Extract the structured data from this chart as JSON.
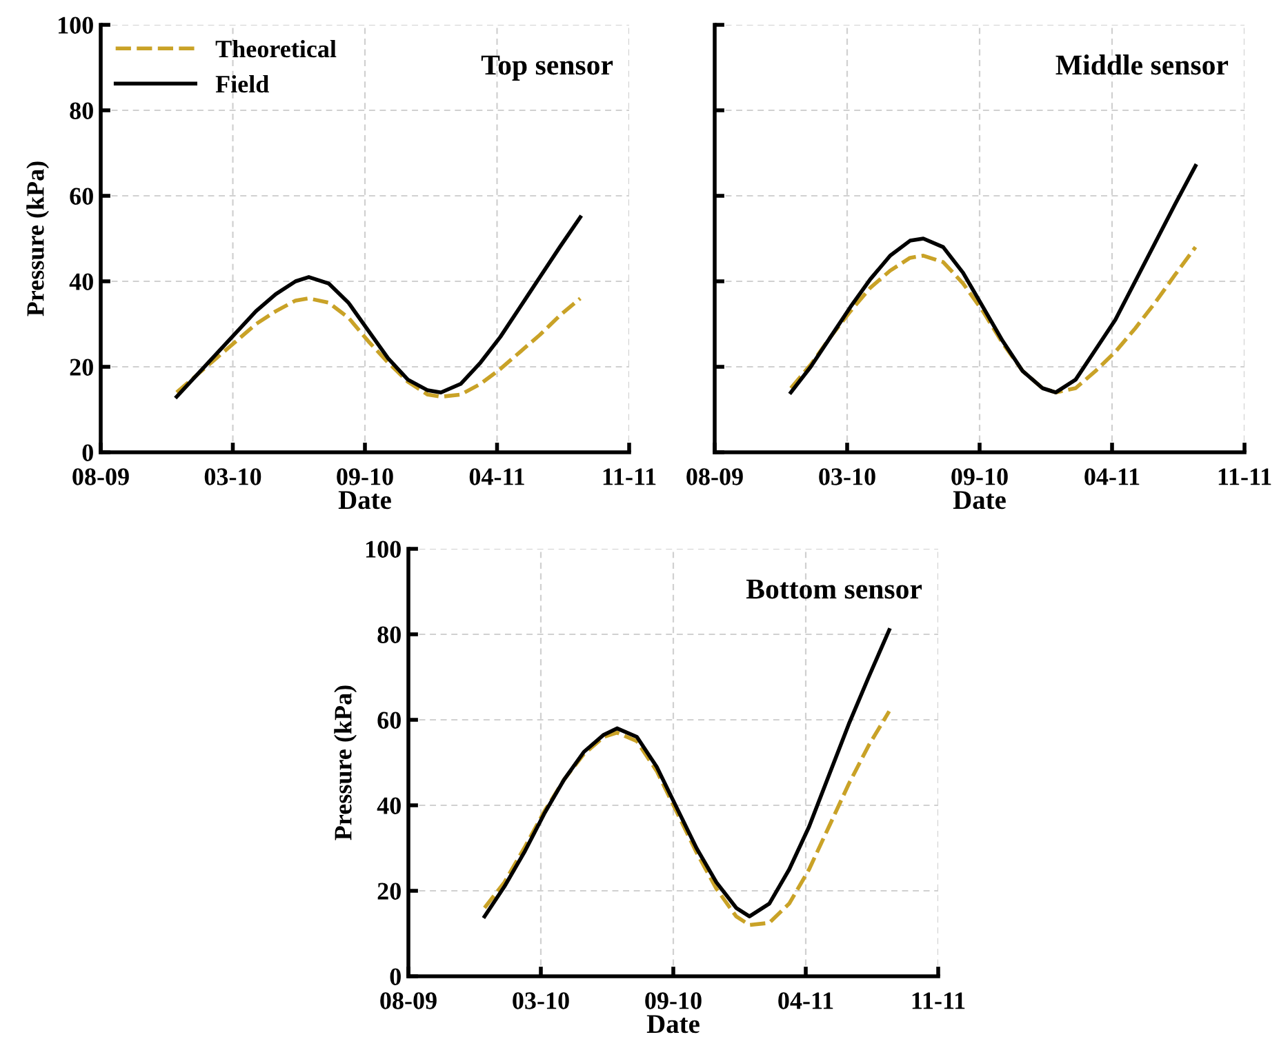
{
  "chart_data": [
    {
      "type": "line",
      "title": "Top sensor",
      "xlabel": "Date",
      "ylabel": "Pressure (kPa)",
      "x": [
        "2009-12-18",
        "2010-01-17",
        "2010-02-16",
        "2010-03-18",
        "2010-04-17",
        "2010-05-17",
        "2010-06-16",
        "2010-07-06",
        "2010-08-05",
        "2010-09-04",
        "2010-10-04",
        "2010-11-03",
        "2010-12-03",
        "2011-01-02",
        "2011-01-22",
        "2011-02-21",
        "2011-03-23",
        "2011-04-22",
        "2011-05-22",
        "2011-06-21",
        "2011-07-21",
        "2011-08-21"
      ],
      "series": [
        {
          "name": "Theoretical",
          "color": "#c9a227",
          "line_style": "dashed",
          "values": [
            14,
            18,
            22,
            26,
            30,
            33,
            35.5,
            36,
            35,
            31.5,
            26,
            21,
            16.5,
            13.5,
            13,
            13.5,
            16,
            19.5,
            23.5,
            27.5,
            32,
            36
          ]
        },
        {
          "name": "Field",
          "color": "#000000",
          "line_style": "solid",
          "values": [
            13,
            18,
            23,
            28,
            33,
            37,
            40,
            41,
            39.5,
            35,
            28.5,
            22,
            17,
            14.5,
            14,
            16,
            21,
            27,
            34,
            41,
            48,
            55
          ]
        }
      ],
      "xlim": [
        "2009-08-25",
        "2011-11-03"
      ],
      "xticks": [
        {
          "value": "2009-08-25",
          "label": "08-09"
        },
        {
          "value": "2010-03-13",
          "label": "03-10"
        },
        {
          "value": "2010-09-29",
          "label": "09-10"
        },
        {
          "value": "2011-04-17",
          "label": "04-11"
        },
        {
          "value": "2011-11-03",
          "label": "11-11"
        }
      ],
      "ylim": [
        0,
        100
      ],
      "yticks": [
        0,
        20,
        40,
        60,
        80,
        100
      ],
      "grid": true,
      "legend": "top left"
    },
    {
      "type": "line",
      "title": "Middle sensor",
      "xlabel": "Date",
      "x": [
        "2009-12-18",
        "2010-01-17",
        "2010-02-16",
        "2010-03-18",
        "2010-04-17",
        "2010-05-17",
        "2010-06-16",
        "2010-07-06",
        "2010-08-05",
        "2010-09-04",
        "2010-10-04",
        "2010-11-03",
        "2010-12-03",
        "2011-01-02",
        "2011-01-22",
        "2011-02-21",
        "2011-03-23",
        "2011-04-22",
        "2011-05-22",
        "2011-06-21",
        "2011-07-21",
        "2011-08-21"
      ],
      "series": [
        {
          "color": "#c9a227",
          "line_style": "dashed",
          "values": [
            15,
            20.5,
            27,
            33,
            38.5,
            42.5,
            45.5,
            46,
            44.5,
            39.5,
            33,
            25.5,
            19,
            15,
            14,
            15,
            19,
            23.5,
            29,
            35,
            41.5,
            48
          ]
        },
        {
          "color": "#000000",
          "line_style": "solid",
          "values": [
            14,
            20,
            27,
            34,
            40.5,
            46,
            49.5,
            50,
            48,
            42,
            34,
            26,
            19,
            15,
            14,
            17,
            24,
            31,
            40,
            49,
            58,
            67
          ]
        }
      ],
      "xlim": [
        "2009-08-25",
        "2011-11-03"
      ],
      "xticks": [
        {
          "value": "2009-08-25",
          "label": "08-09"
        },
        {
          "value": "2010-03-13",
          "label": "03-10"
        },
        {
          "value": "2010-09-29",
          "label": "09-10"
        },
        {
          "value": "2011-04-17",
          "label": "04-11"
        },
        {
          "value": "2011-11-03",
          "label": "11-11"
        }
      ],
      "ylim": [
        0,
        100
      ],
      "yticks": [
        0,
        20,
        40,
        60,
        80,
        100
      ],
      "tick_labels": "x",
      "grid": true
    },
    {
      "type": "line",
      "title": "Bottom sensor",
      "xlabel": "Date",
      "ylabel": "Pressure (kPa)",
      "x": [
        "2009-12-18",
        "2010-01-17",
        "2010-02-16",
        "2010-03-18",
        "2010-04-17",
        "2010-05-17",
        "2010-06-16",
        "2010-07-06",
        "2010-08-05",
        "2010-09-04",
        "2010-10-04",
        "2010-11-03",
        "2010-12-03",
        "2011-01-02",
        "2011-01-22",
        "2011-02-21",
        "2011-03-23",
        "2011-04-22",
        "2011-05-22",
        "2011-06-21",
        "2011-07-21",
        "2011-08-21"
      ],
      "series": [
        {
          "color": "#c9a227",
          "line_style": "dashed",
          "values": [
            16,
            22,
            30,
            38.5,
            46,
            52,
            56,
            57,
            55,
            48,
            38.5,
            29,
            20.5,
            14,
            12,
            12.5,
            17,
            25,
            35,
            45,
            54,
            62
          ]
        },
        {
          "color": "#000000",
          "line_style": "solid",
          "values": [
            14,
            21,
            29,
            38,
            46,
            52.5,
            56.5,
            58,
            56,
            49,
            39.5,
            30,
            22,
            16,
            14,
            17,
            25,
            35,
            47,
            59,
            70,
            81
          ]
        }
      ],
      "xlim": [
        "2009-08-25",
        "2011-11-03"
      ],
      "xticks": [
        {
          "value": "2009-08-25",
          "label": "08-09"
        },
        {
          "value": "2010-03-13",
          "label": "03-10"
        },
        {
          "value": "2010-09-29",
          "label": "09-10"
        },
        {
          "value": "2011-04-17",
          "label": "04-11"
        },
        {
          "value": "2011-11-03",
          "label": "11-11"
        }
      ],
      "ylim": [
        0,
        100
      ],
      "yticks": [
        0,
        20,
        40,
        60,
        80,
        100
      ],
      "grid": true
    }
  ]
}
